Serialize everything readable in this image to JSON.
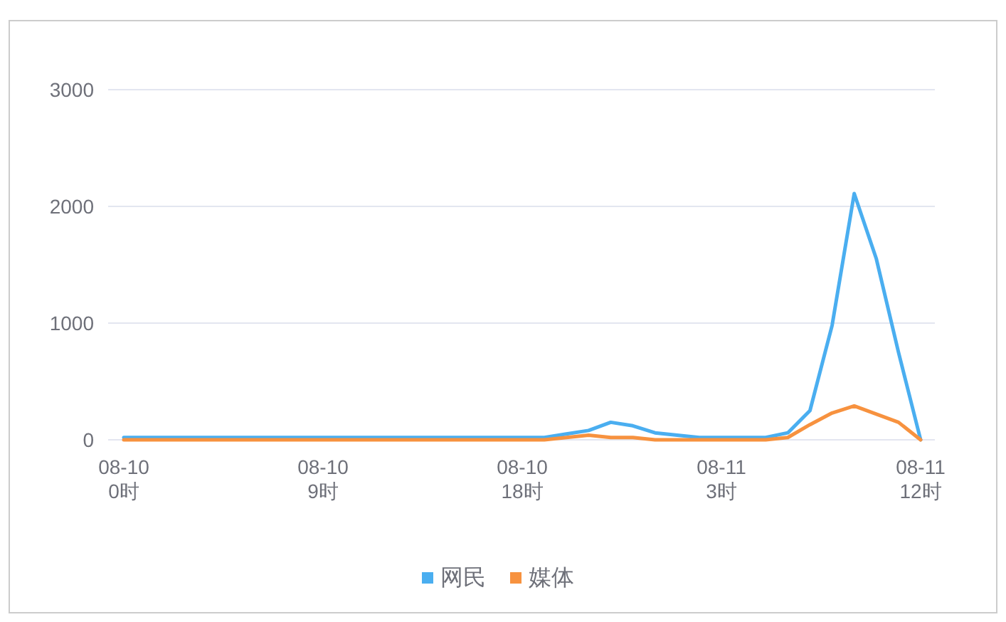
{
  "chart_data": {
    "type": "line",
    "categories": [
      "08-10\n0时",
      null,
      null,
      null,
      null,
      null,
      null,
      null,
      null,
      "08-10\n9时",
      null,
      null,
      null,
      null,
      null,
      null,
      null,
      null,
      "08-10\n18时",
      null,
      null,
      null,
      null,
      null,
      null,
      null,
      null,
      "08-11\n3时",
      null,
      null,
      null,
      null,
      null,
      null,
      null,
      null,
      "08-11\n12时"
    ],
    "series": [
      {
        "name": "网民",
        "color": "#4aaef0",
        "values": [
          20,
          20,
          20,
          20,
          20,
          20,
          20,
          20,
          20,
          20,
          20,
          20,
          20,
          20,
          20,
          20,
          20,
          20,
          20,
          20,
          50,
          80,
          150,
          120,
          60,
          40,
          20,
          20,
          20,
          20,
          60,
          250,
          980,
          2110,
          1550,
          750,
          0
        ]
      },
      {
        "name": "媒体",
        "color": "#f7923f",
        "values": [
          0,
          0,
          0,
          0,
          0,
          0,
          0,
          0,
          0,
          0,
          0,
          0,
          0,
          0,
          0,
          0,
          0,
          0,
          0,
          0,
          20,
          40,
          20,
          20,
          0,
          0,
          0,
          0,
          0,
          0,
          20,
          130,
          230,
          290,
          220,
          150,
          0
        ]
      }
    ],
    "ylim": [
      0,
      3000
    ],
    "yticks": [
      0,
      1000,
      2000,
      3000
    ],
    "grid": "y",
    "legend": "bottom",
    "marker": "none",
    "line_style": "solid"
  }
}
